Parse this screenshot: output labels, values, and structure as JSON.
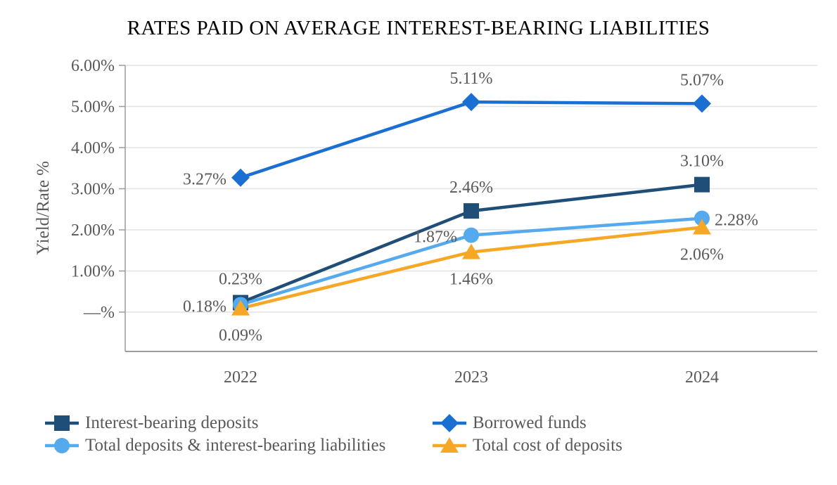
{
  "chart_data": {
    "type": "line",
    "title": "RATES PAID ON AVERAGE INTEREST-BEARING LIABILITIES",
    "ylabel": "Yield/Rate %",
    "x": [
      "2022",
      "2023",
      "2024"
    ],
    "yticks": [
      0,
      1,
      2,
      3,
      4,
      5,
      6
    ],
    "ytick_labels": [
      "—%",
      "1.00%",
      "2.00%",
      "3.00%",
      "4.00%",
      "5.00%",
      "6.00%"
    ],
    "ylim": [
      -0.95,
      6.0
    ],
    "grid": "horizontal",
    "legend_position": "bottom",
    "colors": {
      "gridline": "#e3e3e3",
      "axis": "#9c9c9c",
      "label_text": "#595959",
      "title_text": "#000000"
    },
    "series": [
      {
        "name": "Interest-bearing deposits",
        "marker": "square",
        "color": "#1F4E79",
        "values": [
          0.23,
          2.46,
          3.1
        ],
        "labels": [
          "0.23%",
          "2.46%",
          "3.10%"
        ],
        "label_positions": [
          "above",
          "above",
          "above"
        ]
      },
      {
        "name": "Borrowed funds",
        "marker": "diamond",
        "color": "#1C6FD2",
        "values": [
          3.27,
          5.11,
          5.07
        ],
        "labels": [
          "3.27%",
          "5.11%",
          "5.07%"
        ],
        "label_positions": [
          "left",
          "above",
          "above"
        ]
      },
      {
        "name": "Total deposits & interest-bearing liabilities",
        "marker": "circle",
        "color": "#55AAEE",
        "values": [
          0.18,
          1.87,
          2.28
        ],
        "labels": [
          "0.18%",
          "1.87%",
          "2.28%"
        ],
        "label_positions": [
          "left",
          "left",
          "right"
        ]
      },
      {
        "name": "Total cost of deposits",
        "marker": "triangle",
        "color": "#F7A726",
        "values": [
          0.09,
          1.46,
          2.06
        ],
        "labels": [
          "0.09%",
          "1.46%",
          "2.06%"
        ],
        "label_positions": [
          "below",
          "below",
          "below"
        ]
      }
    ]
  }
}
